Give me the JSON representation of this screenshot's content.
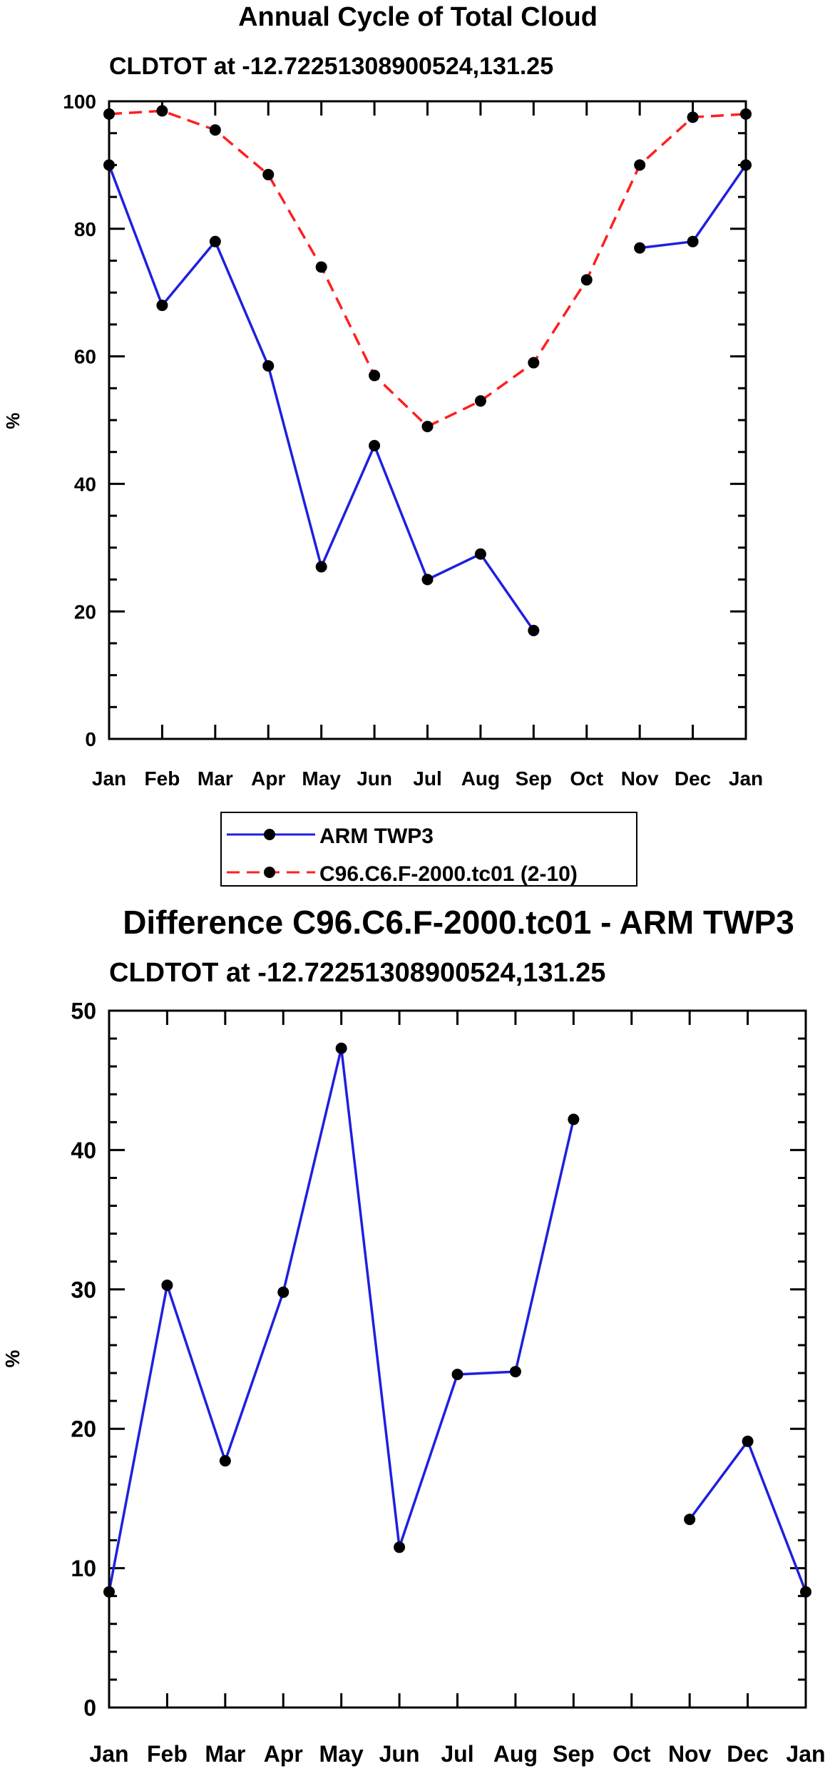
{
  "months": [
    "Jan",
    "Feb",
    "Mar",
    "Apr",
    "May",
    "Jun",
    "Jul",
    "Aug",
    "Sep",
    "Oct",
    "Nov",
    "Dec",
    "Jan"
  ],
  "colors": {
    "obs": "#1f1fe0",
    "model": "#ff1f1f",
    "axis": "#000000"
  },
  "chart_data": [
    {
      "type": "line",
      "title": "Annual Cycle of Total Cloud",
      "subtitle": "CLDTOT at -12.72251308900524,131.25",
      "xlabel": "",
      "ylabel": "%",
      "ylim": [
        0,
        100
      ],
      "yticks": [
        0,
        20,
        40,
        60,
        80,
        100
      ],
      "categories": [
        "Jan",
        "Feb",
        "Mar",
        "Apr",
        "May",
        "Jun",
        "Jul",
        "Aug",
        "Sep",
        "Oct",
        "Nov",
        "Dec",
        "Jan"
      ],
      "series": [
        {
          "name": "ARM TWP3",
          "style": "solid",
          "color": "#1f1fe0",
          "values": [
            90,
            68,
            78,
            58.5,
            27,
            46,
            25,
            29,
            17,
            null,
            77,
            78,
            90
          ]
        },
        {
          "name": "C96.C6.F-2000.tc01 (2-10)",
          "style": "dashed",
          "color": "#ff1f1f",
          "values": [
            98,
            98.5,
            95.5,
            88.5,
            74,
            57,
            49,
            53,
            59,
            72,
            90,
            97.5,
            98
          ]
        }
      ],
      "legend": "below"
    },
    {
      "type": "line",
      "title": "Difference C96.C6.F-2000.tc01 - ARM TWP3",
      "subtitle": "CLDTOT at -12.72251308900524,131.25",
      "xlabel": "",
      "ylabel": "%",
      "ylim": [
        0,
        50
      ],
      "yticks": [
        0,
        10,
        20,
        30,
        40,
        50
      ],
      "categories": [
        "Jan",
        "Feb",
        "Mar",
        "Apr",
        "May",
        "Jun",
        "Jul",
        "Aug",
        "Sep",
        "Oct",
        "Nov",
        "Dec",
        "Jan"
      ],
      "series": [
        {
          "name": "Difference",
          "style": "solid",
          "color": "#1f1fe0",
          "values": [
            8.3,
            30.3,
            17.7,
            29.8,
            47.3,
            11.5,
            23.9,
            24.1,
            42.2,
            null,
            13.5,
            19.1,
            8.3
          ]
        }
      ]
    }
  ]
}
